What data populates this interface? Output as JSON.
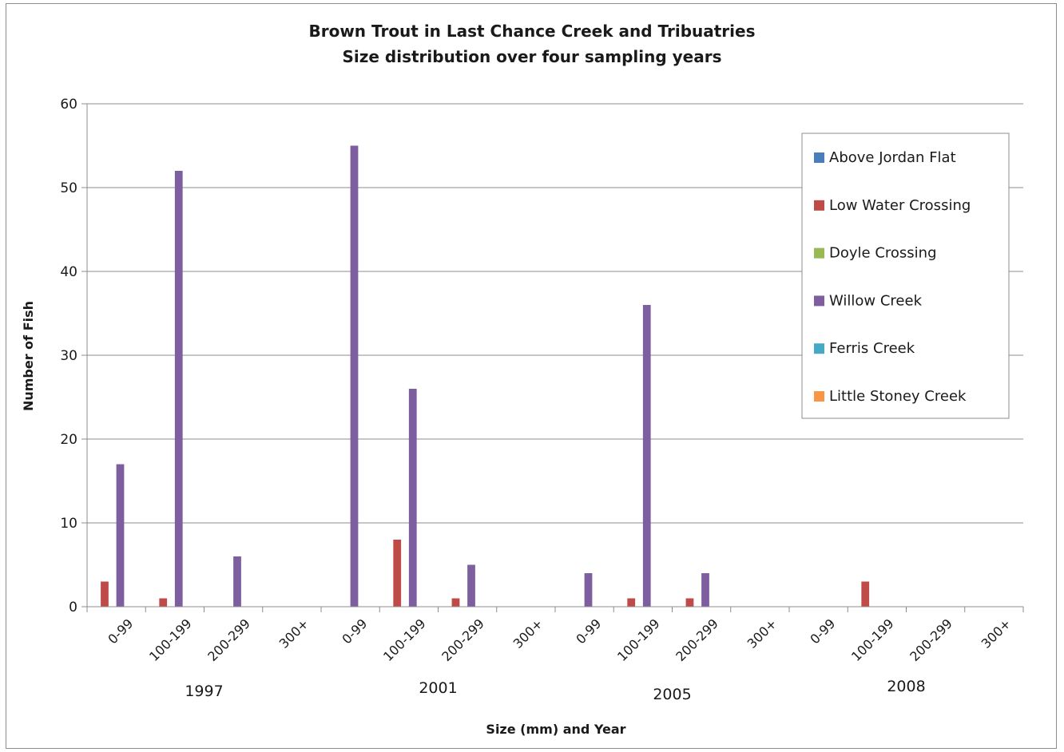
{
  "chart_data": {
    "type": "bar",
    "title": "Brown Trout in Last Chance Creek and Tribuatries",
    "subtitle": "Size distribution over four sampling years",
    "xlabel": "Size (mm) and Year",
    "ylabel": "Number of Fish",
    "ylim": [
      0,
      60
    ],
    "yticks": [
      0,
      10,
      20,
      30,
      40,
      50,
      60
    ],
    "grid": true,
    "legend_position": "top-right",
    "categories": [
      "0-99",
      "100-199",
      "200-299",
      "300+",
      "0-99",
      "100-199",
      "200-299",
      "300+",
      "0-99",
      "100-199",
      "200-299",
      "300+",
      "0-99",
      "100-199",
      "200-299",
      "300+"
    ],
    "groups": [
      "1997",
      "2001",
      "2005",
      "2008"
    ],
    "series": [
      {
        "name": "Above Jordan Flat",
        "color": "#4a7ebb",
        "values": [
          0,
          0,
          0,
          0,
          0,
          0,
          0,
          0,
          0,
          0,
          0,
          0,
          0,
          0,
          0,
          0
        ]
      },
      {
        "name": "Low Water Crossing",
        "color": "#be4b48",
        "values": [
          3,
          1,
          0,
          0,
          0,
          8,
          1,
          0,
          0,
          1,
          1,
          0,
          0,
          3,
          0,
          0
        ]
      },
      {
        "name": "Doyle Crossing",
        "color": "#98b954",
        "values": [
          0,
          0,
          0,
          0,
          0,
          0,
          0,
          0,
          0,
          0,
          0,
          0,
          0,
          0,
          0,
          0
        ]
      },
      {
        "name": "Willow Creek",
        "color": "#7d5fa0",
        "values": [
          17,
          52,
          6,
          0,
          55,
          26,
          5,
          0,
          4,
          36,
          4,
          0,
          0,
          0,
          0,
          0
        ]
      },
      {
        "name": "Ferris Creek",
        "color": "#46aac5",
        "values": [
          0,
          0,
          0,
          0,
          0,
          0,
          0,
          0,
          0,
          0,
          0,
          0,
          0,
          0,
          0,
          0
        ]
      },
      {
        "name": "Little Stoney Creek",
        "color": "#f79646",
        "values": [
          0,
          0,
          0,
          0,
          0,
          0,
          0,
          0,
          0,
          0,
          0,
          0,
          0,
          0,
          0,
          0
        ]
      }
    ]
  }
}
